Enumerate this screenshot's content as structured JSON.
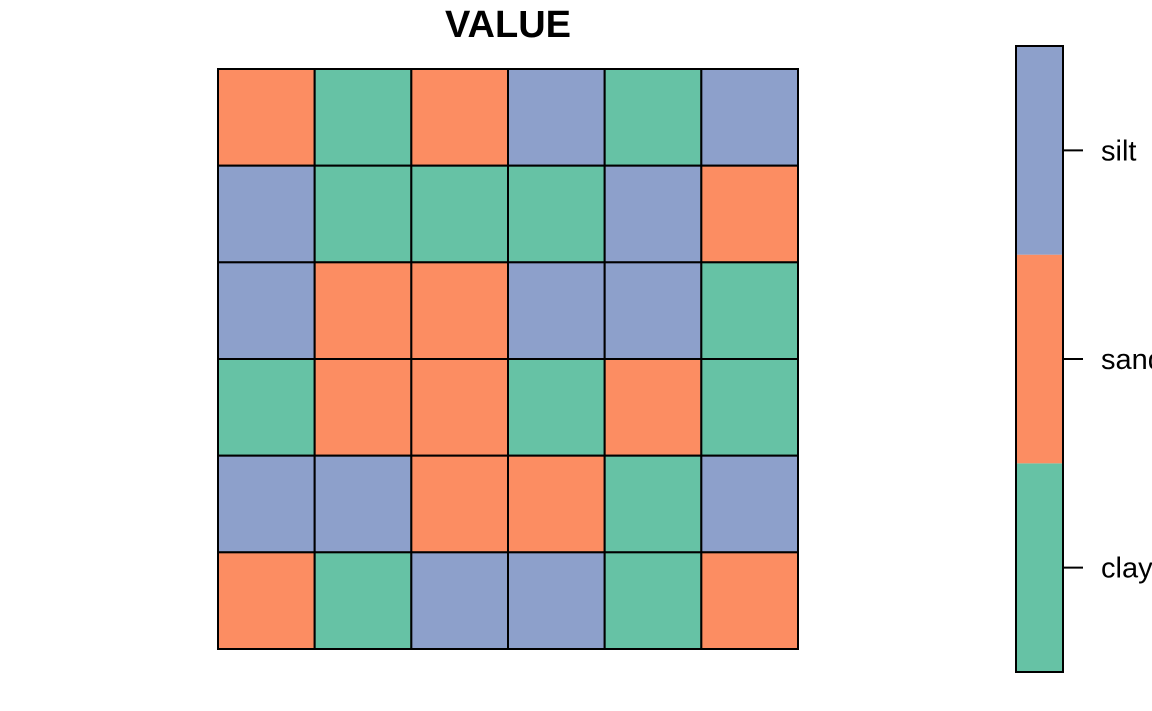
{
  "chart_data": {
    "type": "heatmap",
    "title": "VALUE",
    "categories": [
      "clay",
      "sand",
      "silt"
    ],
    "colors": {
      "clay": "#66C2A5",
      "sand": "#FC8D62",
      "silt": "#8DA0CB"
    },
    "rows": 6,
    "cols": 6,
    "grid": [
      [
        "sand",
        "clay",
        "sand",
        "silt",
        "clay",
        "silt"
      ],
      [
        "silt",
        "clay",
        "clay",
        "clay",
        "silt",
        "sand"
      ],
      [
        "silt",
        "sand",
        "sand",
        "silt",
        "silt",
        "clay"
      ],
      [
        "clay",
        "sand",
        "sand",
        "clay",
        "sand",
        "clay"
      ],
      [
        "silt",
        "silt",
        "sand",
        "sand",
        "clay",
        "silt"
      ],
      [
        "sand",
        "clay",
        "silt",
        "silt",
        "clay",
        "sand"
      ]
    ],
    "legend": {
      "placement": "right",
      "entries": [
        "clay",
        "sand",
        "silt"
      ]
    }
  }
}
